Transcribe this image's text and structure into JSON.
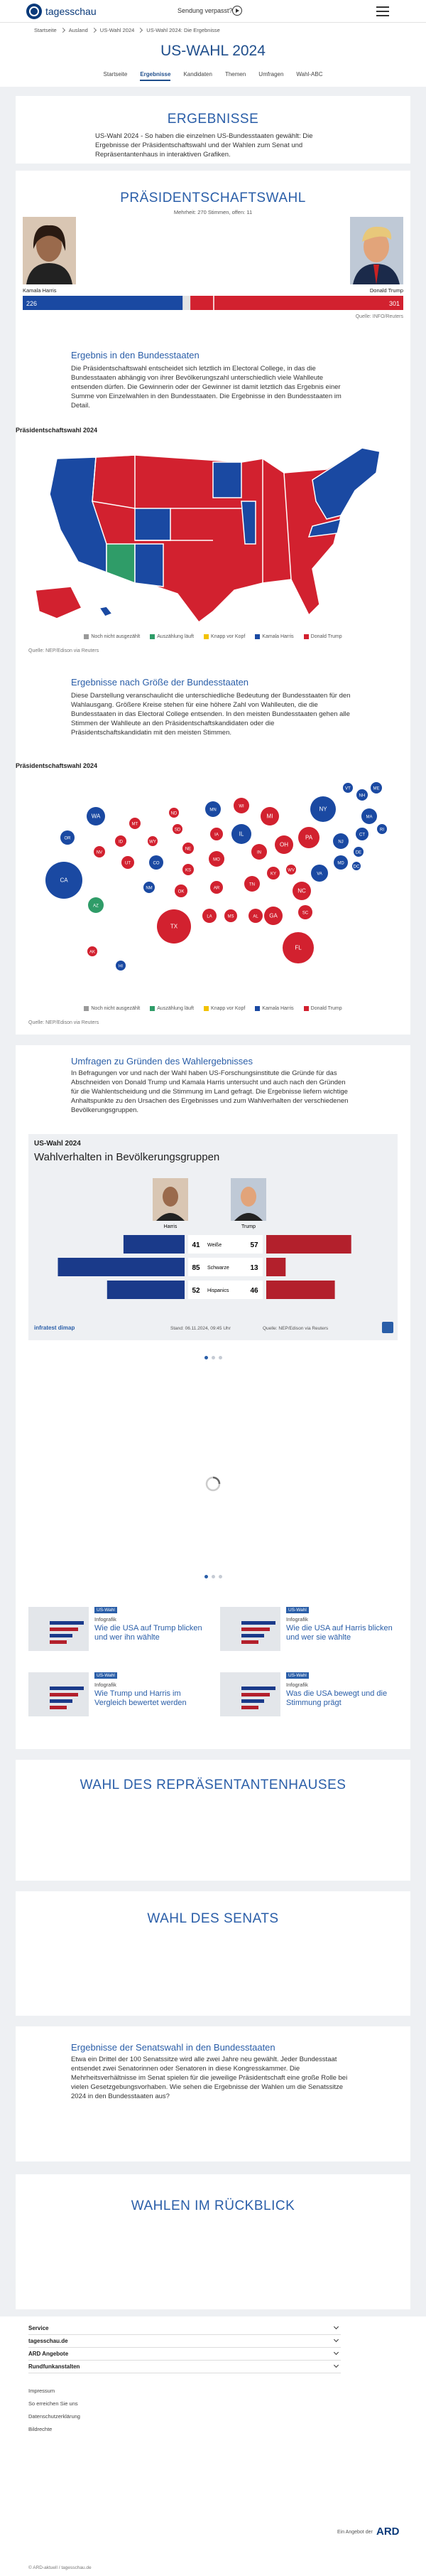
{
  "header": {
    "brand": "tagesschau",
    "missed": "Sendung verpasst?"
  },
  "breadcrumb": [
    "Startseite",
    "Ausland",
    "US-Wahl 2024",
    "US-Wahl 2024: Die Ergebnisse"
  ],
  "page_title": "US-WAHL 2024",
  "nav": {
    "items": [
      "Startseite",
      "Ergebnisse",
      "Kandidaten",
      "Themen",
      "Umfragen",
      "Wahl-ABC"
    ],
    "active": 1
  },
  "intro": {
    "title": "ERGEBNISSE",
    "text": "US-Wahl 2024 - So haben die einzelnen US-Bundesstaaten gewählt: Die Ergebnisse der Präsidentschaftswahl und der Wahlen zum Senat und Repräsentantenhaus in interaktiven Grafiken."
  },
  "president": {
    "title": "PRÄSIDENTSCHAFTSWAHL",
    "majority_label": "Mehrheit:",
    "majority": 270,
    "majority_unit": "Stimmen, offen:",
    "open": 11,
    "candidates": [
      {
        "name": "Kamala Harris",
        "votes": 226,
        "color": "#1a49a2"
      },
      {
        "name": "Donald Trump",
        "votes": 301,
        "color": "#d2212f"
      }
    ],
    "source": "Quelle: INFO/Reuters"
  },
  "states_section": {
    "title": "Ergebnis in den Bundesstaaten",
    "text": "Die Präsidentschaftswahl entscheidet sich letztlich im Electoral College, in das die Bundesstaaten abhängig von ihrer Bevölkerungszahl unterschiedlich viele Wahlleute entsenden dürfen. Die Gewinnerin oder der Gewinner ist damit letztlich das Ergebnis einer Summe von Einzelwahlen in den Bundesstaaten. Die Ergebnisse in den Bundesstaaten im Detail.",
    "chart_label": "Präsidentschaftswahl 2024",
    "legend": [
      {
        "label": "Noch nicht ausgezählt",
        "color": "#9a9a9a"
      },
      {
        "label": "Auszählung läuft",
        "color": "#2f9c68"
      },
      {
        "label": "Knapp vor Kopf",
        "color": "#f2c200"
      },
      {
        "label": "Kamala Harris",
        "color": "#1a49a2"
      },
      {
        "label": "Donald Trump",
        "color": "#d2212f"
      }
    ],
    "source": "Quelle: NEP/Edison via Reuters"
  },
  "size_section": {
    "title": "Ergebnisse nach Größe der Bundesstaaten",
    "text": "Diese Darstellung veranschaulicht die unterschiedliche Bedeutung der Bundesstaaten für den Wahlausgang. Größere Kreise stehen für eine höhere Zahl von Wahlleuten, die die Bundesstaaten in das Electoral College entsenden. In den meisten Bundesstaaten gehen alle Stimmen der Wahlleute an den Präsidentschaftskandidaten oder die Präsidentschaftskandidatin mit den meisten Stimmen.",
    "chart_label": "Präsidentschaftswahl 2024",
    "states": [
      {
        "label": "WA",
        "color": "#1a49a2"
      },
      {
        "label": "OR",
        "color": "#1a49a2"
      },
      {
        "label": "CA",
        "color": "#1a49a2"
      },
      {
        "label": "NV",
        "color": "#d2212f"
      },
      {
        "label": "ID",
        "color": "#d2212f"
      },
      {
        "label": "MT",
        "color": "#d2212f"
      },
      {
        "label": "WY",
        "color": "#d2212f"
      },
      {
        "label": "UT",
        "color": "#d2212f"
      },
      {
        "label": "AZ",
        "color": "#2f9c68"
      },
      {
        "label": "CO",
        "color": "#1a49a2"
      },
      {
        "label": "NM",
        "color": "#1a49a2"
      },
      {
        "label": "ND",
        "color": "#d2212f"
      },
      {
        "label": "SD",
        "color": "#d2212f"
      },
      {
        "label": "NE",
        "color": "#d2212f"
      },
      {
        "label": "KS",
        "color": "#d2212f"
      },
      {
        "label": "OK",
        "color": "#d2212f"
      },
      {
        "label": "TX",
        "color": "#d2212f"
      },
      {
        "label": "MN",
        "color": "#1a49a2"
      },
      {
        "label": "IA",
        "color": "#d2212f"
      },
      {
        "label": "MO",
        "color": "#d2212f"
      },
      {
        "label": "AR",
        "color": "#d2212f"
      },
      {
        "label": "LA",
        "color": "#d2212f"
      },
      {
        "label": "WI",
        "color": "#d2212f"
      },
      {
        "label": "IL",
        "color": "#1a49a2"
      },
      {
        "label": "MS",
        "color": "#d2212f"
      },
      {
        "label": "IN",
        "color": "#d2212f"
      },
      {
        "label": "MI",
        "color": "#d2212f"
      },
      {
        "label": "KY",
        "color": "#d2212f"
      },
      {
        "label": "TN",
        "color": "#d2212f"
      },
      {
        "label": "AL",
        "color": "#d2212f"
      },
      {
        "label": "OH",
        "color": "#d2212f"
      },
      {
        "label": "WV",
        "color": "#d2212f"
      },
      {
        "label": "GA",
        "color": "#d2212f"
      },
      {
        "label": "FL",
        "color": "#d2212f"
      },
      {
        "label": "SC",
        "color": "#d2212f"
      },
      {
        "label": "NC",
        "color": "#d2212f"
      },
      {
        "label": "VA",
        "color": "#1a49a2"
      },
      {
        "label": "PA",
        "color": "#d2212f"
      },
      {
        "label": "NY",
        "color": "#1a49a2"
      },
      {
        "label": "NJ",
        "color": "#1a49a2"
      },
      {
        "label": "MD",
        "color": "#1a49a2"
      },
      {
        "label": "DE",
        "color": "#1a49a2"
      },
      {
        "label": "DC",
        "color": "#1a49a2"
      },
      {
        "label": "CT",
        "color": "#1a49a2"
      },
      {
        "label": "RI",
        "color": "#1a49a2"
      },
      {
        "label": "MA",
        "color": "#1a49a2"
      },
      {
        "label": "VT",
        "color": "#1a49a2"
      },
      {
        "label": "NH",
        "color": "#1a49a2"
      },
      {
        "label": "ME",
        "color": "#1a49a2"
      },
      {
        "label": "AK",
        "color": "#d2212f"
      },
      {
        "label": "HI",
        "color": "#1a49a2"
      }
    ],
    "legend": [
      {
        "label": "Noch nicht ausgezählt",
        "color": "#9a9a9a"
      },
      {
        "label": "Auszählung läuft",
        "color": "#2f9c68"
      },
      {
        "label": "Knapp vor Kopf",
        "color": "#f2c200"
      },
      {
        "label": "Kamala Harris",
        "color": "#1a49a2"
      },
      {
        "label": "Donald Trump",
        "color": "#d2212f"
      }
    ],
    "source": "Quelle: NEP/Edison via Reuters"
  },
  "polls": {
    "title": "Umfragen zu Gründen des Wahlergebnisses",
    "text": "In Befragungen vor und nach der Wahl haben US-Forschungsinstitute die Gründe für das Abschneiden von Donald Trump und Kamala Harris untersucht und auch nach den Gründen für die Wahlentscheidung und die Stimmung im Land gefragt. Die Ergebnisse liefern wichtige Anhaltspunkte zu den Ursachen des Ergebnisses und zum Wahlverhalten der verschiedenen Bevölkerungsgruppen.",
    "infographic": {
      "kicker": "US-Wahl 2024",
      "title": "Wahlverhalten in Bevölkerungsgruppen",
      "candidates": [
        {
          "name": "Harris",
          "color": "#1a3a8a"
        },
        {
          "name": "Trump",
          "color": "#b3202c"
        }
      ],
      "groups": [
        {
          "label": "Weiße",
          "values": [
            41,
            57
          ]
        },
        {
          "label": "Schwarze",
          "values": [
            85,
            13
          ]
        },
        {
          "label": "Hispanics",
          "values": [
            52,
            46
          ]
        }
      ],
      "brand": "infratest dimap",
      "date": "Stand: 06.11.2024, 09:45 Uhr",
      "source": "Quelle: NEP/Edison via Reuters"
    }
  },
  "teasers": [
    {
      "topline": "US-Wahl",
      "kicker": "Infografik",
      "title": "Wie die USA auf Trump blicken und wer ihn wählte"
    },
    {
      "topline": "US-Wahl",
      "kicker": "Infografik",
      "title": "Wie die USA auf Harris blicken und wer sie wählte"
    },
    {
      "topline": "US-Wahl",
      "kicker": "Infografik",
      "title": "Wie Trump und Harris im Vergleich bewertet werden"
    },
    {
      "topline": "US-Wahl",
      "kicker": "Infografik",
      "title": "Was die USA bewegt und die Stimmung prägt"
    }
  ],
  "house": {
    "title": "WAHL DES REPRÄSENTANTENHAUSES"
  },
  "senate": {
    "title": "WAHL DES SENATS"
  },
  "senate_states": {
    "title": "Ergebnisse der Senatswahl in den Bundesstaaten",
    "text": "Etwa ein Drittel der 100 Senatssitze wird alle zwei Jahre neu gewählt. Jeder Bundesstaat entsendet zwei Senatorinnen oder Senatoren in diese Kongresskammer. Die Mehrheitsverhältnisse im Senat spielen für die jeweilige Präsidentschaft eine große Rolle bei vielen Gesetzgebungsvorhaben. Wie sehen die Ergebnisse der Wahlen um die Senatssitze 2024 in den Bundesstaaten aus?"
  },
  "review": {
    "title": "WAHLEN IM RÜCKBLICK"
  },
  "footer": {
    "accordion": [
      "Service",
      "tagesschau.de",
      "ARD Angebote",
      "Rundfunkanstalten"
    ],
    "links": [
      "Impressum",
      "So erreichen Sie uns",
      "Datenschutzerklärung",
      "Bildrechte"
    ],
    "ard_note": "Ein Angebot der",
    "ard": "ARD",
    "copyright": "© ARD-aktuell / tagesschau.de"
  }
}
